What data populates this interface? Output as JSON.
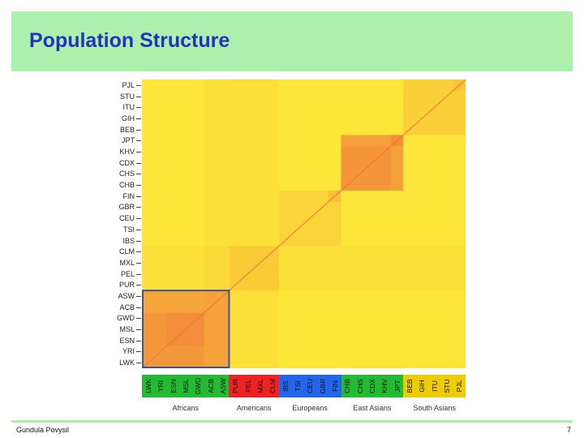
{
  "slide": {
    "title": "Population Structure",
    "author": "Gundula Povysil",
    "page_number": "7"
  },
  "row_labels": [
    "PJL",
    "STU",
    "ITU",
    "GIH",
    "BEB",
    "JPT",
    "KHV",
    "CDX",
    "CHS",
    "CHB",
    "FIN",
    "GBR",
    "CEU",
    "TSI",
    "IBS",
    "CLM",
    "MXL",
    "PEL",
    "PUR",
    "ASW",
    "ACB",
    "GWD",
    "MSL",
    "ESN",
    "YRI",
    "LWK"
  ],
  "column_labels": [
    {
      "label": "LWK",
      "group": "Africans"
    },
    {
      "label": "YRI",
      "group": "Africans"
    },
    {
      "label": "ESN",
      "group": "Africans"
    },
    {
      "label": "MSL",
      "group": "Africans"
    },
    {
      "label": "GWD",
      "group": "Africans"
    },
    {
      "label": "ACB",
      "group": "Africans"
    },
    {
      "label": "ASW",
      "group": "Africans"
    },
    {
      "label": "PUR",
      "group": "Americans"
    },
    {
      "label": "PEL",
      "group": "Americans"
    },
    {
      "label": "MXL",
      "group": "Americans"
    },
    {
      "label": "CLM",
      "group": "Americans"
    },
    {
      "label": "IBS",
      "group": "Europeans"
    },
    {
      "label": "TSI",
      "group": "Europeans"
    },
    {
      "label": "CEU",
      "group": "Europeans"
    },
    {
      "label": "GBR",
      "group": "Europeans"
    },
    {
      "label": "FIN",
      "group": "Europeans"
    },
    {
      "label": "CHB",
      "group": "East Asians"
    },
    {
      "label": "CHS",
      "group": "East Asians"
    },
    {
      "label": "CDX",
      "group": "East Asians"
    },
    {
      "label": "KHV",
      "group": "East Asians"
    },
    {
      "label": "JPT",
      "group": "East Asians"
    },
    {
      "label": "BEB",
      "group": "South Asians"
    },
    {
      "label": "GIH",
      "group": "South Asians"
    },
    {
      "label": "ITU",
      "group": "South Asians"
    },
    {
      "label": "STU",
      "group": "South Asians"
    },
    {
      "label": "PJL",
      "group": "South Asians"
    }
  ],
  "groups": [
    {
      "name": "Africans",
      "color": "#22bb33",
      "count": 7
    },
    {
      "name": "Americans",
      "color": "#ee2222",
      "count": 4
    },
    {
      "name": "Europeans",
      "color": "#2266ee",
      "count": 5
    },
    {
      "name": "East Asians",
      "color": "#22bb33",
      "count": 5
    },
    {
      "name": "South Asians",
      "color": "#eecc00",
      "count": 5
    }
  ],
  "colors": {
    "title": "#2233bb",
    "title_bar": "#adefad",
    "heat_background": "#fde63a",
    "heat_high": "#f0703a",
    "highlight_box": "#3355aa"
  }
}
